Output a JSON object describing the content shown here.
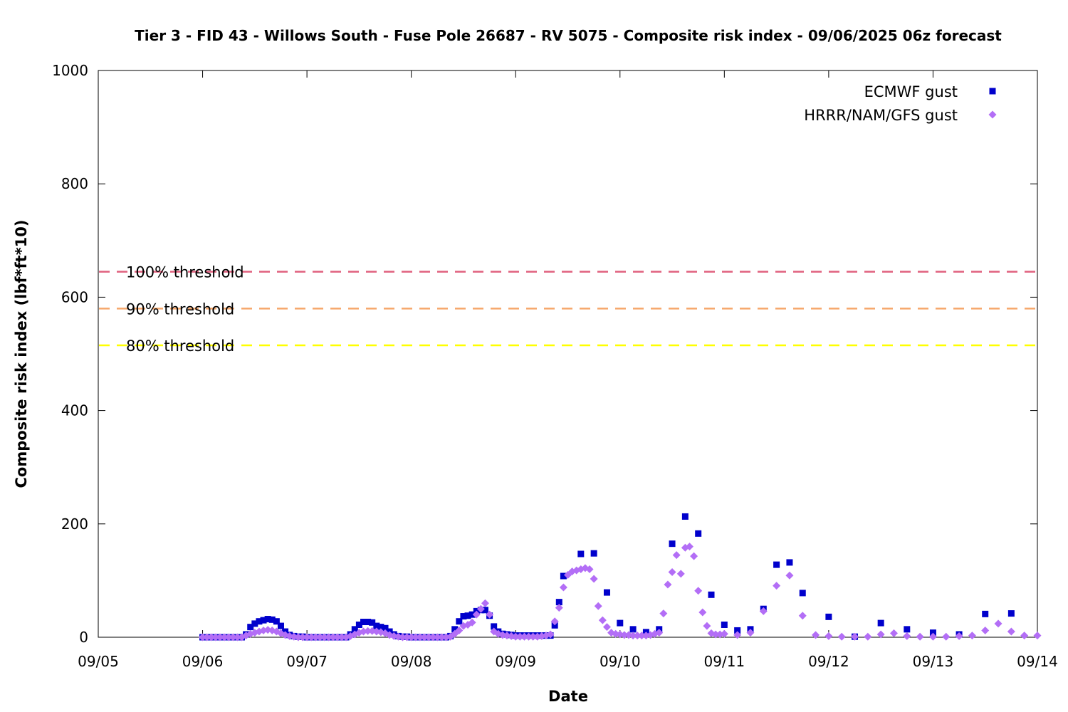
{
  "chart_data": {
    "type": "scatter",
    "title": "Tier 3 - FID 43 - Willows South - Fuse Pole 26687 - RV 5075 - Composite risk index - 09/06/2025 06z forecast",
    "xlabel": "Date",
    "ylabel": "Composite risk index (lbf*ft*10)",
    "xlim": [
      "09/05",
      "09/14"
    ],
    "ylim": [
      0,
      1000
    ],
    "x_ticks": [
      "09/05",
      "09/06",
      "09/07",
      "09/08",
      "09/09",
      "09/10",
      "09/11",
      "09/12",
      "09/13",
      "09/14"
    ],
    "y_ticks": [
      "0",
      "200",
      "400",
      "600",
      "800",
      "1000"
    ],
    "grid": false,
    "legend": "top-right",
    "thresholds": [
      {
        "label": "100% threshold",
        "value": 645,
        "color": "#e0607e"
      },
      {
        "label": "90% threshold",
        "value": 580,
        "color": "#f6a76b"
      },
      {
        "label": "80% threshold",
        "value": 515,
        "color": "#ffff00"
      }
    ],
    "series": [
      {
        "name": "ECMWF gust",
        "marker": "square",
        "color": "#0000cc",
        "points": [
          [
            "09/06 00:00",
            0
          ],
          [
            "09/06 01:00",
            0
          ],
          [
            "09/06 02:00",
            0
          ],
          [
            "09/06 03:00",
            0
          ],
          [
            "09/06 04:00",
            0
          ],
          [
            "09/06 05:00",
            0
          ],
          [
            "09/06 06:00",
            0
          ],
          [
            "09/06 07:00",
            0
          ],
          [
            "09/06 08:00",
            0
          ],
          [
            "09/06 09:00",
            0
          ],
          [
            "09/06 10:00",
            5
          ],
          [
            "09/06 11:00",
            18
          ],
          [
            "09/06 12:00",
            24
          ],
          [
            "09/06 13:00",
            28
          ],
          [
            "09/06 14:00",
            30
          ],
          [
            "09/06 15:00",
            32
          ],
          [
            "09/06 16:00",
            31
          ],
          [
            "09/06 17:00",
            28
          ],
          [
            "09/06 18:00",
            20
          ],
          [
            "09/06 19:00",
            10
          ],
          [
            "09/06 20:00",
            4
          ],
          [
            "09/06 21:00",
            2
          ],
          [
            "09/06 22:00",
            1
          ],
          [
            "09/06 23:00",
            1
          ],
          [
            "09/07 00:00",
            0
          ],
          [
            "09/07 01:00",
            0
          ],
          [
            "09/07 02:00",
            0
          ],
          [
            "09/07 03:00",
            0
          ],
          [
            "09/07 04:00",
            0
          ],
          [
            "09/07 05:00",
            0
          ],
          [
            "09/07 06:00",
            0
          ],
          [
            "09/07 07:00",
            0
          ],
          [
            "09/07 08:00",
            0
          ],
          [
            "09/07 09:00",
            0
          ],
          [
            "09/07 10:00",
            5
          ],
          [
            "09/07 11:00",
            14
          ],
          [
            "09/07 12:00",
            22
          ],
          [
            "09/07 13:00",
            27
          ],
          [
            "09/07 14:00",
            27
          ],
          [
            "09/07 15:00",
            26
          ],
          [
            "09/07 16:00",
            20
          ],
          [
            "09/07 17:00",
            18
          ],
          [
            "09/07 18:00",
            16
          ],
          [
            "09/07 19:00",
            10
          ],
          [
            "09/07 20:00",
            5
          ],
          [
            "09/07 21:00",
            2
          ],
          [
            "09/07 22:00",
            1
          ],
          [
            "09/07 23:00",
            1
          ],
          [
            "09/08 00:00",
            0
          ],
          [
            "09/08 01:00",
            0
          ],
          [
            "09/08 02:00",
            0
          ],
          [
            "09/08 03:00",
            0
          ],
          [
            "09/08 04:00",
            0
          ],
          [
            "09/08 05:00",
            0
          ],
          [
            "09/08 06:00",
            0
          ],
          [
            "09/08 07:00",
            0
          ],
          [
            "09/08 08:00",
            0
          ],
          [
            "09/08 09:00",
            2
          ],
          [
            "09/08 10:00",
            14
          ],
          [
            "09/08 11:00",
            28
          ],
          [
            "09/08 12:00",
            37
          ],
          [
            "09/08 13:00",
            38
          ],
          [
            "09/08 14:00",
            40
          ],
          [
            "09/08 15:00",
            46
          ],
          [
            "09/08 16:00",
            48
          ],
          [
            "09/08 17:00",
            48
          ],
          [
            "09/08 18:00",
            38
          ],
          [
            "09/08 19:00",
            19
          ],
          [
            "09/08 20:00",
            10
          ],
          [
            "09/08 21:00",
            6
          ],
          [
            "09/08 22:00",
            5
          ],
          [
            "09/08 23:00",
            4
          ],
          [
            "09/09 00:00",
            3
          ],
          [
            "09/09 01:00",
            3
          ],
          [
            "09/09 02:00",
            3
          ],
          [
            "09/09 03:00",
            3
          ],
          [
            "09/09 04:00",
            3
          ],
          [
            "09/09 05:00",
            3
          ],
          [
            "09/09 06:00",
            3
          ],
          [
            "09/09 07:00",
            3
          ],
          [
            "09/09 08:00",
            3
          ],
          [
            "09/09 09:00",
            21
          ],
          [
            "09/09 10:00",
            62
          ],
          [
            "09/09 11:00",
            108
          ],
          [
            "09/09 15:00",
            147
          ],
          [
            "09/09 18:00",
            148
          ],
          [
            "09/09 21:00",
            79
          ],
          [
            "09/10 00:00",
            25
          ],
          [
            "09/10 03:00",
            14
          ],
          [
            "09/10 06:00",
            9
          ],
          [
            "09/10 09:00",
            14
          ],
          [
            "09/10 12:00",
            165
          ],
          [
            "09/10 15:00",
            213
          ],
          [
            "09/10 18:00",
            183
          ],
          [
            "09/10 21:00",
            75
          ],
          [
            "09/11 00:00",
            22
          ],
          [
            "09/11 03:00",
            12
          ],
          [
            "09/11 06:00",
            14
          ],
          [
            "09/11 09:00",
            50
          ],
          [
            "09/11 12:00",
            128
          ],
          [
            "09/11 15:00",
            132
          ],
          [
            "09/11 18:00",
            78
          ],
          [
            "09/12 00:00",
            36
          ],
          [
            "09/12 06:00",
            1
          ],
          [
            "09/12 12:00",
            25
          ],
          [
            "09/12 18:00",
            14
          ],
          [
            "09/13 00:00",
            8
          ],
          [
            "09/13 06:00",
            5
          ],
          [
            "09/13 12:00",
            41
          ],
          [
            "09/13 18:00",
            42
          ]
        ]
      },
      {
        "name": "HRRR/NAM/GFS gust",
        "marker": "diamond",
        "color": "#b36ef6",
        "points": [
          [
            "09/06 00:00",
            0
          ],
          [
            "09/06 01:00",
            0
          ],
          [
            "09/06 02:00",
            0
          ],
          [
            "09/06 03:00",
            0
          ],
          [
            "09/06 04:00",
            0
          ],
          [
            "09/06 05:00",
            0
          ],
          [
            "09/06 06:00",
            0
          ],
          [
            "09/06 07:00",
            0
          ],
          [
            "09/06 08:00",
            0
          ],
          [
            "09/06 09:00",
            0
          ],
          [
            "09/06 10:00",
            3
          ],
          [
            "09/06 11:00",
            6
          ],
          [
            "09/06 12:00",
            8
          ],
          [
            "09/06 13:00",
            10
          ],
          [
            "09/06 14:00",
            12
          ],
          [
            "09/06 15:00",
            13
          ],
          [
            "09/06 16:00",
            12
          ],
          [
            "09/06 17:00",
            10
          ],
          [
            "09/06 18:00",
            7
          ],
          [
            "09/06 19:00",
            4
          ],
          [
            "09/06 20:00",
            2
          ],
          [
            "09/06 21:00",
            1
          ],
          [
            "09/06 22:00",
            0
          ],
          [
            "09/06 23:00",
            0
          ],
          [
            "09/07 00:00",
            0
          ],
          [
            "09/07 01:00",
            0
          ],
          [
            "09/07 02:00",
            0
          ],
          [
            "09/07 03:00",
            0
          ],
          [
            "09/07 04:00",
            0
          ],
          [
            "09/07 05:00",
            0
          ],
          [
            "09/07 06:00",
            0
          ],
          [
            "09/07 07:00",
            0
          ],
          [
            "09/07 08:00",
            0
          ],
          [
            "09/07 09:00",
            0
          ],
          [
            "09/07 10:00",
            2
          ],
          [
            "09/07 11:00",
            5
          ],
          [
            "09/07 12:00",
            8
          ],
          [
            "09/07 13:00",
            10
          ],
          [
            "09/07 14:00",
            11
          ],
          [
            "09/07 15:00",
            11
          ],
          [
            "09/07 16:00",
            10
          ],
          [
            "09/07 17:00",
            9
          ],
          [
            "09/07 18:00",
            7
          ],
          [
            "09/07 19:00",
            4
          ],
          [
            "09/07 20:00",
            2
          ],
          [
            "09/07 21:00",
            1
          ],
          [
            "09/07 22:00",
            0
          ],
          [
            "09/07 23:00",
            0
          ],
          [
            "09/08 00:00",
            0
          ],
          [
            "09/08 01:00",
            0
          ],
          [
            "09/08 02:00",
            0
          ],
          [
            "09/08 03:00",
            0
          ],
          [
            "09/08 04:00",
            0
          ],
          [
            "09/08 05:00",
            0
          ],
          [
            "09/08 06:00",
            0
          ],
          [
            "09/08 07:00",
            0
          ],
          [
            "09/08 08:00",
            0
          ],
          [
            "09/08 09:00",
            1
          ],
          [
            "09/08 10:00",
            6
          ],
          [
            "09/08 11:00",
            12
          ],
          [
            "09/08 12:00",
            20
          ],
          [
            "09/08 13:00",
            22
          ],
          [
            "09/08 14:00",
            26
          ],
          [
            "09/08 15:00",
            40
          ],
          [
            "09/08 16:00",
            50
          ],
          [
            "09/08 17:00",
            60
          ],
          [
            "09/08 18:00",
            40
          ],
          [
            "09/08 19:00",
            10
          ],
          [
            "09/08 20:00",
            6
          ],
          [
            "09/08 21:00",
            4
          ],
          [
            "09/08 22:00",
            3
          ],
          [
            "09/08 23:00",
            2
          ],
          [
            "09/09 00:00",
            1
          ],
          [
            "09/09 01:00",
            1
          ],
          [
            "09/09 02:00",
            1
          ],
          [
            "09/09 03:00",
            1
          ],
          [
            "09/09 04:00",
            1
          ],
          [
            "09/09 05:00",
            1
          ],
          [
            "09/09 06:00",
            2
          ],
          [
            "09/09 07:00",
            3
          ],
          [
            "09/09 08:00",
            5
          ],
          [
            "09/09 09:00",
            28
          ],
          [
            "09/09 10:00",
            52
          ],
          [
            "09/09 11:00",
            88
          ],
          [
            "09/09 12:00",
            110
          ],
          [
            "09/09 13:00",
            116
          ],
          [
            "09/09 14:00",
            118
          ],
          [
            "09/09 15:00",
            120
          ],
          [
            "09/09 16:00",
            122
          ],
          [
            "09/09 17:00",
            120
          ],
          [
            "09/09 18:00",
            103
          ],
          [
            "09/09 19:00",
            55
          ],
          [
            "09/09 20:00",
            30
          ],
          [
            "09/09 21:00",
            18
          ],
          [
            "09/09 22:00",
            8
          ],
          [
            "09/09 23:00",
            6
          ],
          [
            "09/10 00:00",
            5
          ],
          [
            "09/10 01:00",
            4
          ],
          [
            "09/10 02:00",
            4
          ],
          [
            "09/10 03:00",
            3
          ],
          [
            "09/10 04:00",
            3
          ],
          [
            "09/10 05:00",
            3
          ],
          [
            "09/10 06:00",
            3
          ],
          [
            "09/10 07:00",
            4
          ],
          [
            "09/10 08:00",
            6
          ],
          [
            "09/10 09:00",
            8
          ],
          [
            "09/10 10:00",
            42
          ],
          [
            "09/10 11:00",
            93
          ],
          [
            "09/10 12:00",
            115
          ],
          [
            "09/10 13:00",
            145
          ],
          [
            "09/10 14:00",
            112
          ],
          [
            "09/10 15:00",
            158
          ],
          [
            "09/10 16:00",
            160
          ],
          [
            "09/10 17:00",
            143
          ],
          [
            "09/10 18:00",
            82
          ],
          [
            "09/10 19:00",
            44
          ],
          [
            "09/10 20:00",
            20
          ],
          [
            "09/10 21:00",
            7
          ],
          [
            "09/10 22:00",
            5
          ],
          [
            "09/10 23:00",
            5
          ],
          [
            "09/11 00:00",
            6
          ],
          [
            "09/11 03:00",
            4
          ],
          [
            "09/11 06:00",
            8
          ],
          [
            "09/11 09:00",
            46
          ],
          [
            "09/11 12:00",
            91
          ],
          [
            "09/11 15:00",
            109
          ],
          [
            "09/11 18:00",
            38
          ],
          [
            "09/11 21:00",
            4
          ],
          [
            "09/12 00:00",
            2
          ],
          [
            "09/12 03:00",
            1
          ],
          [
            "09/12 06:00",
            1
          ],
          [
            "09/12 09:00",
            1
          ],
          [
            "09/12 12:00",
            5
          ],
          [
            "09/12 15:00",
            7
          ],
          [
            "09/12 18:00",
            2
          ],
          [
            "09/12 21:00",
            1
          ],
          [
            "09/13 00:00",
            1
          ],
          [
            "09/13 03:00",
            1
          ],
          [
            "09/13 06:00",
            2
          ],
          [
            "09/13 09:00",
            3
          ],
          [
            "09/13 12:00",
            12
          ],
          [
            "09/13 15:00",
            24
          ],
          [
            "09/13 18:00",
            10
          ],
          [
            "09/13 21:00",
            3
          ],
          [
            "09/14 00:00",
            3
          ]
        ]
      }
    ]
  }
}
